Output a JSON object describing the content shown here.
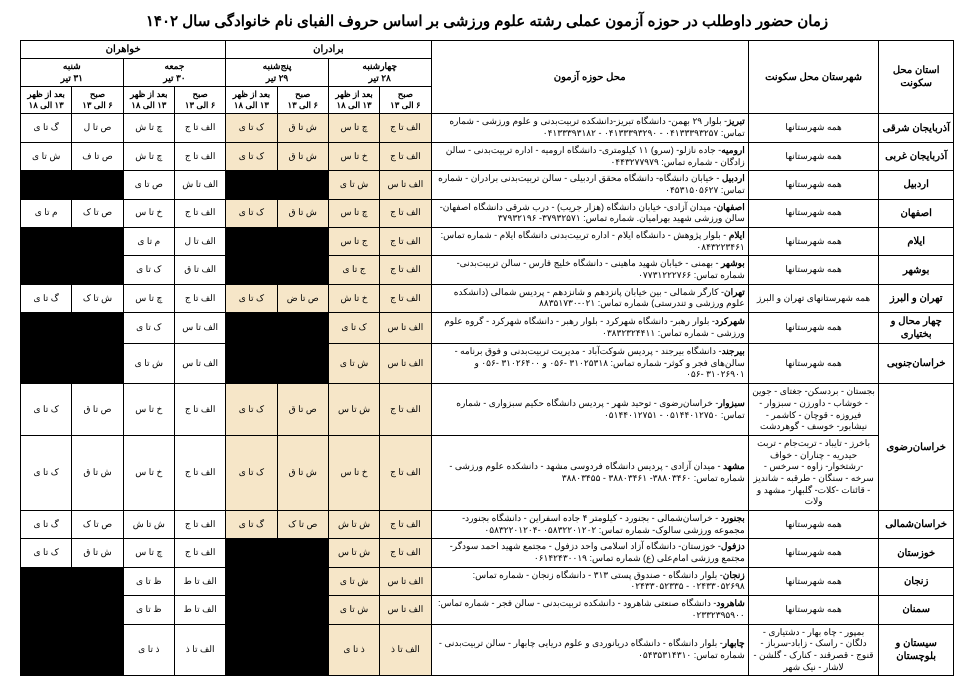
{
  "title": "زمان حضور داوطلب در حوزه آزمون عملی رشته علوم ورزشی بر اساس حروف الفبای نام خانوادگی سال ۱۴۰۲",
  "headers": {
    "province": "استان محل سکونت",
    "city": "شهرستان محل سکونت",
    "venue": "محل حوزه آزمون",
    "brothers": "برادران",
    "sisters": "خواهران",
    "days_b": [
      {
        "name": "چهارشنبه",
        "date": "۲۸ تیر"
      },
      {
        "name": "پنج‌شنبه",
        "date": "۲۹ تیر"
      }
    ],
    "days_s": [
      {
        "name": "جمعه",
        "date": "۳۰ تیر"
      },
      {
        "name": "شنبه",
        "date": "۳۱ تیر"
      }
    ],
    "sub": [
      "صبح\n۶ الی ۱۳",
      "بعد از ظهر\n۱۳ الی ۱۸"
    ]
  },
  "rows": [
    {
      "province": "آذربایجان شرقی",
      "city": "همه شهرستانها",
      "venue": "<b>تبریز</b>- بلوار ۲۹ بهمن- دانشگاه تبریز-دانشکده تربیت‌بدنی و علوم ورزشی - شماره تماس: ۰۴۱۳۳۳۹۳۲۵۷ - ۰۴۱۳۳۳۹۳۲۹۰ - ۰۴۱۳۳۳۹۳۱۸۲",
      "b": [
        "الف تا ج",
        "چ تا س",
        "ش تا ق",
        "ک تا ی"
      ],
      "s": [
        "الف تا ج",
        "چ تا ش",
        "ص تا ل",
        "گ تا ی"
      ]
    },
    {
      "province": "آذربایجان غربی",
      "city": "همه شهرستانها",
      "venue": "<b>ارومیه</b>- جاده نازلو- (سرو) ۱۱ کیلومتری- دانشگاه ارومیه - اداره تربیت‌بدنی - سالن زادگان - شماره تماس: ۰۴۴۳۲۷۷۹۷۹",
      "b": [
        "الف تا ج",
        "خ تا س",
        "ش تا ق",
        "ک تا ی"
      ],
      "s": [
        "الف تا ج",
        "چ تا ش",
        "ص تا ف",
        "ش تا ی"
      ]
    },
    {
      "province": "اردبیل",
      "city": "همه شهرستانها",
      "venue": "<b>اردبیل</b> - خیابان دانشگاه- دانشگاه محقق اردبیلی - سالن تربیت‌بدنی برادران - شماره تماس: ۰۴۵۳۱۵۰۵۶۲۷",
      "b": [
        "الف تا س",
        "ش تا ی",
        "",
        ""
      ],
      "s": [
        "الف تا ش",
        "ص تا ی",
        "",
        ""
      ],
      "black": [
        2,
        3,
        6,
        7
      ]
    },
    {
      "province": "اصفهان",
      "city": "همه شهرستانها",
      "venue": "<b>اصفهان</b>- میدان آزادی- خیابان دانشگاه (هزار جریب) - درب شرقی دانشگاه اصفهان- سالن ورزشی شهید بهرامیان. شماره تماس: ۳۷۹۳۲۵۷۱- ۳۷۹۳۲۱۹۶",
      "b": [
        "الف تا ج",
        "چ تا س",
        "ش تا ق",
        "ک تا ی"
      ],
      "s": [
        "الف تا ج",
        "خ تا س",
        "ص تا ک",
        "م تا ی"
      ]
    },
    {
      "province": "ایلام",
      "city": "همه شهرستانها",
      "venue": "<b>ایلام</b> - بلوار پژوهش - دانشگاه ایلام - اداره تربیت‌بدنی دانشگاه ایلام - شماره تماس: ۰۸۴۳۲۲۳۴۶۱",
      "b": [
        "الف تا ج",
        "ج تا س",
        "",
        ""
      ],
      "s": [
        "الف تا ل",
        "م تا ی",
        "",
        ""
      ],
      "black": [
        2,
        3,
        6,
        7
      ]
    },
    {
      "province": "بوشهر",
      "city": "همه شهرستانها",
      "venue": "<b>بوشهر</b> - بهمنی - خیابان شهید ماهینی - دانشگاه خلیج فارس - سالن تربیت‌بدنی- شماره تماس: ۰۷۷۳۱۲۲۲۷۶۶",
      "b": [
        "الف تا ج",
        "ج تا ی",
        "",
        ""
      ],
      "s": [
        "الف تا ق",
        "ک تا ی",
        "",
        ""
      ],
      "black": [
        2,
        3,
        6,
        7
      ]
    },
    {
      "province": "تهران و البرز",
      "city": "همه شهرستانهای تهران و البرز",
      "venue": "<b>تهران</b>- کارگر شمالی - بین خیابان پانزدهم و شانزدهم - پردیس شمالی (دانشکده علوم ورزشی و تندرستی) شماره تماس: ۰۲۱-۸۸۳۵۱۷۳۰",
      "b": [
        "الف تا ج",
        "خ تا ش",
        "ص تا ض",
        "ک تا ی"
      ],
      "s": [
        "الف تا ج",
        "چ تا س",
        "ش تا ک",
        "گ تا ی"
      ]
    },
    {
      "province": "چهار محال و بختیاری",
      "city": "همه شهرستانها",
      "venue": "<b>شهرکرد</b>- بلوار رهبر- دانشگاه شهرکرد - بلوار رهبر - دانشگاه شهرکرد - گروه علوم ورزشی - شماره تماس: ۰۳۸۳۲۳۲۴۴۱۱",
      "b": [
        "الف تا س",
        "ک تا ی",
        "",
        ""
      ],
      "s": [
        "الف تا س",
        "ک تا ی",
        "",
        ""
      ],
      "black": [
        2,
        3,
        6,
        7
      ]
    },
    {
      "province": "خراسان‌جنوبی",
      "city": "همه شهرستانها",
      "venue": "<b>بیرجند</b>- دانشگاه بیرجند - پردیس شوکت‌آباد - مدیریت تربیت‌بدنی و فوق برنامه - سالن‌های فجر و کوثر- شماره تماس: ۳۱۰۲۵۳۱۸ -۰۵۶ و ۳۱۰۲۶۴۰۰ -۰۵۶ و ۳۱۰۲۶۹۰۱ -۰۵۶",
      "b": [
        "الف تا س",
        "ش تا ی",
        "",
        ""
      ],
      "s": [
        "الف تا س",
        "ش تا ی",
        "",
        ""
      ],
      "black": [
        2,
        3,
        6,
        7
      ]
    },
    {
      "province": "خراسان‌رضوی",
      "province_rowspan": 2,
      "city": "بجستان - بردسکن- جغتای - جوین - خوشاب - داورزن - سبزوار - فیروزه - قوچان - کاشمر - نیشابور- خوسف - گوهردشت",
      "venue": "<b>سبزوار</b>- خراسان‌رضوی - توحید شهر - پردیس دانشگاه حکیم سبزواری - شماره تماس: ۰۵۱۴۴۰۱۲۷۵۰ - ۰۵۱۴۴۰۱۲۷۵۱",
      "b": [
        "الف تا ج",
        "ش تا س",
        "ص تا ق",
        "ک تا ی"
      ],
      "s": [
        "الف تا ج",
        "خ تا س",
        "ص تا ق",
        "ک تا ی"
      ]
    },
    {
      "province": "",
      "city": "باخرز - تایباد - تربت‌جام - تربت حیدریه - چناران - خواف -رشتخوار- زاوه - سرخس - سرخه - سنگان - طرقبه - شاندیز - قائنات -کلات- گلبهار- مشهد و ولات",
      "venue": "<b>مشهد</b> - میدان آزادی - پردیس دانشگاه فردوسی مشهد - دانشکده علوم ورزشی - شماره تماس: ۳۸۸۰۳۴۶۰- ۳۸۸۰۳۴۶۱ - ۳۸۸۰۳۴۵۵",
      "b": [
        "الف تا ج",
        "خ تا س",
        "ش تا ق",
        "ک تا ی"
      ],
      "s": [
        "الف تا ج",
        "خ تا س",
        "ش تا ق",
        "ک تا ی"
      ]
    },
    {
      "province": "خراسان‌شمالی",
      "city": "همه شهرستانها",
      "venue": "<b>بجنورد</b> - خراسان‌شمالی - بجنورد - کیلومتر ۴ جاده اسفراین - دانشگاه بجنورد- مجموعه ورزشی سالوک- شماره تماس: ۰۵۸۳۲۲۰۱۲۰۲ -۰۵۸۳۲۲۰۱۲۰۴",
      "b": [
        "الف تا ج",
        "ش تا ش",
        "ص تا ک",
        "گ تا ی"
      ],
      "s": [
        "الف تا ج",
        "ش تا ش",
        "ص تا ک",
        "گ تا ی"
      ]
    },
    {
      "province": "خوزستان",
      "city": "همه شهرستانها",
      "venue": "<b>دزفول</b>- خوزستان- دانشگاه آزاد اسلامی واحد دزفول - مجتمع شهید احمد سودگر- مجتمع ورزشی امام‌علی (ع) شماره تماس: ۰۶۱۴۲۴۳۰۰۱۹",
      "b": [
        "الف تا ج",
        "ش تا س",
        "",
        ""
      ],
      "s": [
        "الف تا ج",
        "چ تا س",
        "ش تا ق",
        "ک تا ی"
      ],
      "black": [
        2,
        3
      ]
    },
    {
      "province": "زنجان",
      "city": "همه شهرستانها",
      "venue": "<b>زنجان</b>- بلوار دانشگاه - صندوق پستی ۳۱۳ - دانشگاه زنجان - شماره تماس: ۰۲۴۳۳۰۵۲۶۹۸ - ۰۲۴۳۳۰۵۲۳۳۵",
      "b": [
        "الف تا س",
        "ش تا ی",
        "",
        ""
      ],
      "s": [
        "الف تا ط",
        "ظ تا ی",
        "",
        ""
      ],
      "black": [
        2,
        3,
        6,
        7
      ]
    },
    {
      "province": "سمنان",
      "city": "همه شهرستانها",
      "venue": "<b>شاهرود</b>- دانشگاه صنعتی شاهرود - دانشکده تربیت‌بدنی - سالن فجر - شماره تماس: ۰۲۳۳۲۳۹۵۹۰۰",
      "b": [
        "الف تا س",
        "ش تا ی",
        "",
        ""
      ],
      "s": [
        "الف تا ط",
        "ظ تا ی",
        "",
        ""
      ],
      "black": [
        2,
        3,
        6,
        7
      ]
    },
    {
      "province": "سیستان و بلوچستان",
      "city": "بمپور - چاه بهار - دشتیاری - دلگان - راسک - زاباد-سرباز - قنوج - قصرقند - کنارک - گلشن - لاشار - نیک شهر",
      "venue": "<b>چابهار</b>- بلوار دانشگاه - دانشگاه دریانوردی و علوم دریایی چابهار - سالن تربیت‌بدنی - شماره تماس: ۰۵۴۳۵۳۱۴۳۱۰",
      "b": [
        "الف تا ذ",
        "ذ تا ی",
        "",
        ""
      ],
      "s": [
        "الف تا ذ",
        "ذ تا ی",
        "",
        ""
      ],
      "black": [
        2,
        3,
        6,
        7
      ]
    }
  ]
}
